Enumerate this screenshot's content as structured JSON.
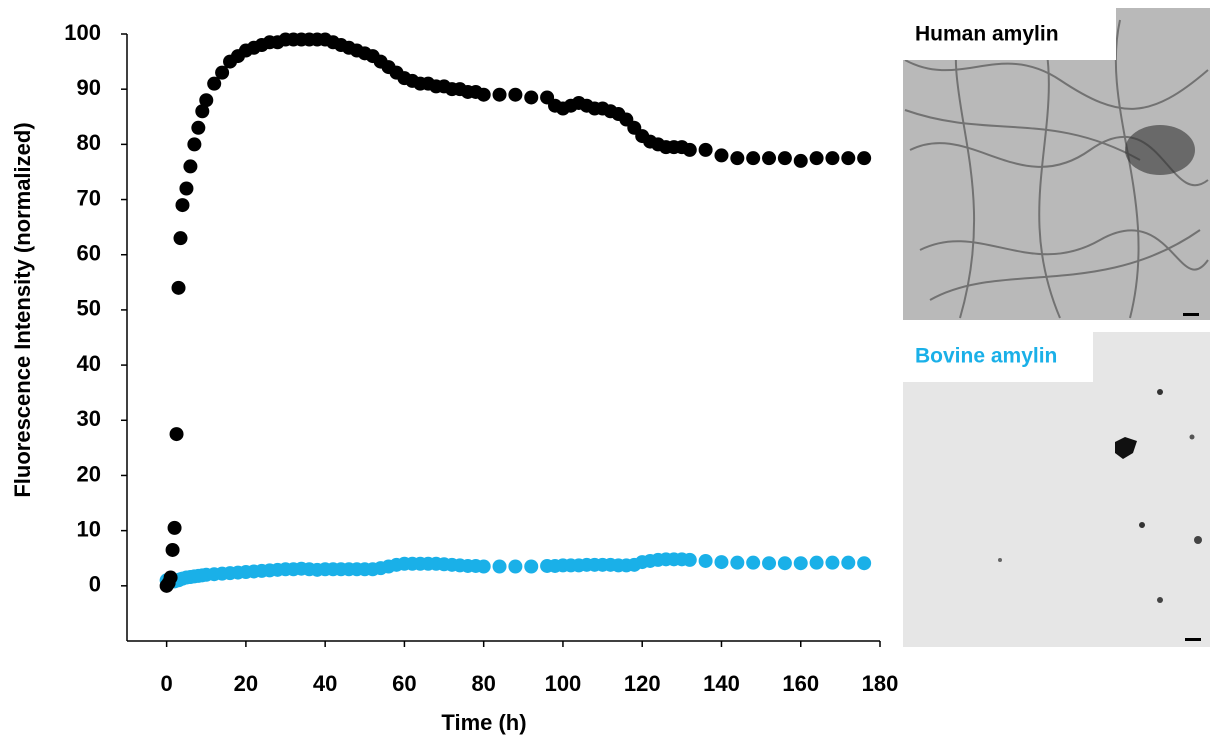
{
  "chart_data": {
    "type": "scatter",
    "ylabel": "Fluorescence Intensity (normalized)",
    "xlabel": "Time (h)",
    "xlim": [
      -10,
      180
    ],
    "xticks": [
      0,
      20,
      40,
      60,
      80,
      100,
      120,
      140,
      160,
      180
    ],
    "ylim": [
      -10,
      100
    ],
    "yticks": [
      0,
      10,
      20,
      30,
      40,
      50,
      60,
      70,
      80,
      90,
      100
    ],
    "grid": false,
    "x": [
      0,
      0.5,
      1,
      1.5,
      2,
      2.5,
      3,
      3.5,
      4,
      5,
      6,
      7,
      8,
      9,
      10,
      12,
      14,
      16,
      18,
      20,
      22,
      24,
      26,
      28,
      30,
      32,
      34,
      36,
      38,
      40,
      42,
      44,
      46,
      48,
      50,
      52,
      54,
      56,
      58,
      60,
      62,
      64,
      66,
      68,
      70,
      72,
      74,
      76,
      78,
      80,
      84,
      88,
      92,
      96,
      98,
      100,
      102,
      104,
      106,
      108,
      110,
      112,
      114,
      116,
      118,
      120,
      122,
      124,
      126,
      128,
      130,
      132,
      136,
      140,
      144,
      148,
      152,
      156,
      160,
      164,
      168,
      172,
      176
    ],
    "series": [
      {
        "name": "Bovine amylin",
        "color": "#1ab0e8",
        "values": [
          1,
          1,
          0.8,
          0.8,
          0.8,
          1,
          1,
          1.2,
          1.3,
          1.5,
          1.6,
          1.7,
          1.8,
          1.9,
          2,
          2.1,
          2.2,
          2.3,
          2.4,
          2.5,
          2.6,
          2.7,
          2.8,
          2.9,
          3,
          3,
          3.1,
          3,
          2.9,
          3,
          3,
          3,
          3,
          3,
          3,
          3,
          3.2,
          3.5,
          3.8,
          4,
          4,
          4,
          4,
          4,
          3.9,
          3.8,
          3.7,
          3.6,
          3.6,
          3.5,
          3.5,
          3.5,
          3.5,
          3.6,
          3.6,
          3.7,
          3.7,
          3.7,
          3.8,
          3.8,
          3.8,
          3.8,
          3.7,
          3.7,
          3.8,
          4.3,
          4.5,
          4.7,
          4.8,
          4.8,
          4.8,
          4.7,
          4.5,
          4.3,
          4.2,
          4.2,
          4.1,
          4.1,
          4.1,
          4.2,
          4.2,
          4.2,
          4.1
        ]
      },
      {
        "name": "Human amylin",
        "color": "#000000",
        "values": [
          0,
          0.5,
          1.5,
          6.5,
          10.5,
          27.5,
          54,
          63,
          69,
          72,
          76,
          80,
          83,
          86,
          88,
          91,
          93,
          95,
          96,
          97,
          97.5,
          98,
          98.5,
          98.5,
          99,
          99,
          99,
          99,
          99,
          99,
          98.5,
          98,
          97.5,
          97,
          96.5,
          96,
          95,
          94,
          93,
          92,
          91.5,
          91,
          91,
          90.5,
          90.5,
          90,
          90,
          89.5,
          89.5,
          89,
          89,
          89,
          88.5,
          88.5,
          87,
          86.5,
          87,
          87.5,
          87,
          86.5,
          86.5,
          86,
          85.5,
          84.5,
          83,
          81.5,
          80.5,
          80,
          79.5,
          79.5,
          79.5,
          79,
          79,
          78,
          77.5,
          77.5,
          77.5,
          77.5,
          77,
          77.5,
          77.5,
          77.5,
          77.5
        ]
      }
    ]
  },
  "panels": [
    {
      "label": "Human amylin"
    },
    {
      "label": "Bovine amylin"
    }
  ]
}
